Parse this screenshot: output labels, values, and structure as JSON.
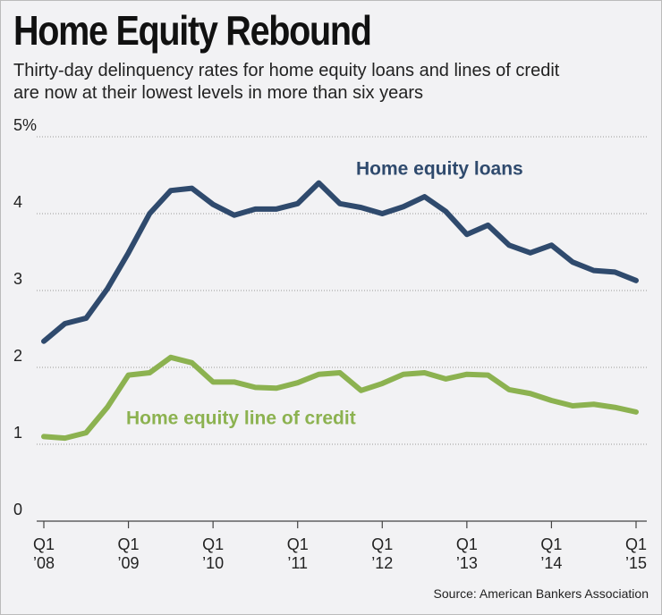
{
  "chart_data": {
    "type": "line",
    "title": "Home Equity Rebound",
    "subtitle": "Thirty-day delinquency rates for home equity loans and lines of credit are now at their lowest levels in more than six years",
    "source": "Source: American Bankers Association",
    "categories": [
      "Q1\n’08",
      null,
      null,
      null,
      "Q1\n’09",
      null,
      null,
      null,
      "Q1\n’10",
      null,
      null,
      null,
      "Q1\n’11",
      null,
      null,
      null,
      "Q1\n’12",
      null,
      null,
      null,
      "Q1\n’13",
      null,
      null,
      null,
      "Q1\n’14",
      null,
      null,
      null,
      "Q1\n’15"
    ],
    "series": [
      {
        "name": "Home equity loans",
        "color": "#2f4a6d",
        "values": [
          2.34,
          2.57,
          2.64,
          3.02,
          3.49,
          4.0,
          4.3,
          4.33,
          4.12,
          3.98,
          4.06,
          4.06,
          4.13,
          4.4,
          4.13,
          4.08,
          4.0,
          4.09,
          4.22,
          4.03,
          3.73,
          3.85,
          3.59,
          3.49,
          3.59,
          3.37,
          3.26,
          3.24,
          3.13
        ]
      },
      {
        "name": "Home equity line of credit",
        "color": "#8cb250",
        "values": [
          1.1,
          1.08,
          1.15,
          1.48,
          1.9,
          1.93,
          2.13,
          2.06,
          1.81,
          1.81,
          1.74,
          1.73,
          1.8,
          1.91,
          1.93,
          1.7,
          1.79,
          1.91,
          1.93,
          1.85,
          1.91,
          1.9,
          1.71,
          1.66,
          1.57,
          1.5,
          1.52,
          1.48,
          1.42
        ]
      }
    ],
    "ylim": [
      0,
      5
    ],
    "yticks": [
      0,
      1,
      2,
      3,
      4,
      {
        "value": 5,
        "label": "5%"
      }
    ],
    "grid": true
  }
}
